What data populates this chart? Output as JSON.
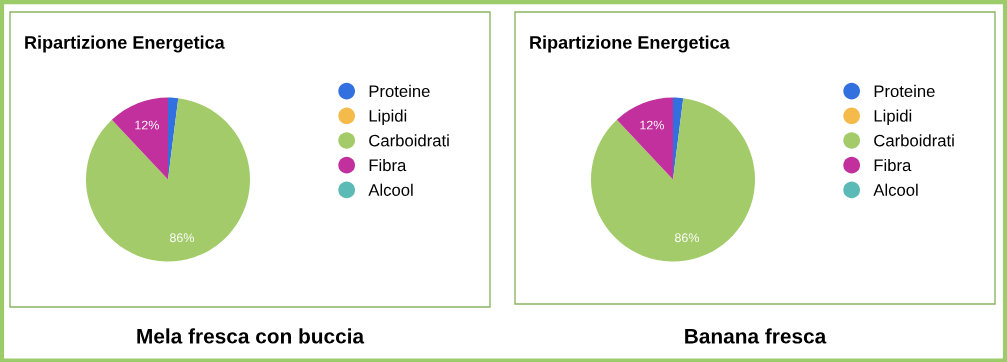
{
  "chart_data": [
    {
      "type": "pie",
      "title": "Ripartizione Energetica",
      "categories": [
        "Proteine",
        "Lipidi",
        "Carboidrati",
        "Fibra",
        "Alcool"
      ],
      "values": [
        2,
        0,
        86,
        12,
        0
      ],
      "colors": [
        "#3270e0",
        "#f4bb4a",
        "#a3cb6a",
        "#c2309e",
        "#5bbab5"
      ],
      "value_labels": [
        null,
        null,
        "86%",
        "12%",
        null
      ],
      "legend": "right",
      "annotations": [
        "Mela fresca con buccia"
      ]
    },
    {
      "type": "pie",
      "title": "Ripartizione Energetica",
      "categories": [
        "Proteine",
        "Lipidi",
        "Carboidrati",
        "Fibra",
        "Alcool"
      ],
      "values": [
        2,
        0,
        86,
        12,
        0
      ],
      "colors": [
        "#3270e0",
        "#f4bb4a",
        "#a3cb6a",
        "#c2309e",
        "#5bbab5"
      ],
      "value_labels": [
        null,
        null,
        "86%",
        "12%",
        null
      ],
      "legend": "right",
      "annotations": [
        "Banana fresca"
      ]
    }
  ]
}
